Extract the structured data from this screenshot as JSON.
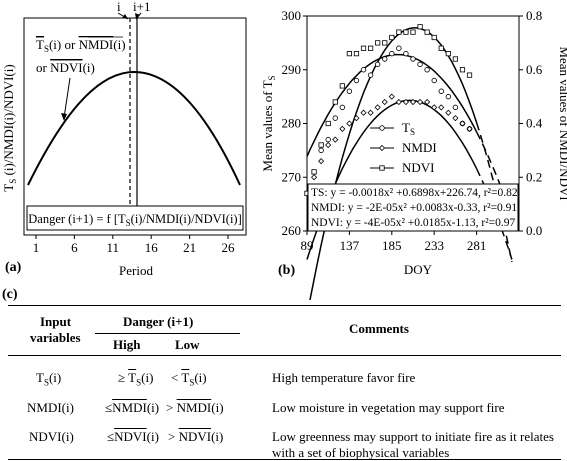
{
  "panel_a": {
    "label": "(a)",
    "top_marker_i": "i",
    "top_marker_i1": "i+1",
    "ylabel": "TS (i)/NMDI(i)/NDVI(i)",
    "legend_line1_prefix": "",
    "legend_ts": "T",
    "legend_ts_sub": "S",
    "legend_ts_suffix": "(i) or ",
    "legend_nmdi": "NMDI",
    "legend_nmdi_suffix": "(i)",
    "legend_line2_prefix": "or ",
    "legend_ndvi": "NDVI",
    "legend_ndvi_suffix": "(i)",
    "danger_text": "Danger (i+1) = f [TS(i)/NMDI(i)/NDVI(i)]",
    "x_ticks": [
      "1",
      "6",
      "11",
      "16",
      "21",
      "26"
    ],
    "xlabel": "Period"
  },
  "chart_data": {
    "type": "scatter",
    "label": "(b)",
    "xlabel": "DOY",
    "ylabel_left": "Mean values of TS",
    "ylabel_right": "Mean values of NMDI/NDVI",
    "x_ticks": [
      "89",
      "137",
      "185",
      "233",
      "281"
    ],
    "y_left_ticks": [
      "260",
      "270",
      "280",
      "290",
      "300"
    ],
    "y_right_ticks": [
      "0.0",
      "0.2",
      "0.4",
      "0.6",
      "0.8"
    ],
    "xlim": [
      89,
      329
    ],
    "ylim_left": [
      260,
      300
    ],
    "ylim_right": [
      0.0,
      0.8
    ],
    "legend": [
      {
        "name": "TS",
        "marker": "circle"
      },
      {
        "name": "NMDI",
        "marker": "diamond"
      },
      {
        "name": "NDVI",
        "marker": "square"
      }
    ],
    "equations": [
      "TS: y = -0.0018x² +0.6898x+226.74, r²=0.82",
      "NMDI: y = -2E-05x² +0.0083x-0.33, r²=0.91",
      "NDVI: y = -4E-05x² +0.0185x-1.13, r²=0.97"
    ],
    "series": [
      {
        "name": "TS",
        "axis": "left",
        "x": [
          105,
          113,
          121,
          129,
          137,
          145,
          153,
          161,
          169,
          177,
          185,
          193,
          201,
          209,
          217,
          225,
          233,
          241,
          249,
          257,
          265,
          273
        ],
        "y": [
          275,
          277,
          281,
          283,
          286,
          288,
          290,
          289,
          291,
          292,
          293,
          294,
          293,
          292,
          291,
          290,
          288,
          286,
          285,
          283,
          280,
          279
        ]
      },
      {
        "name": "NMDI",
        "axis": "left",
        "x": [
          97,
          105,
          113,
          121,
          129,
          137,
          145,
          153,
          161,
          169,
          177,
          185,
          193,
          201,
          209,
          217,
          225,
          233,
          241,
          249,
          257,
          265,
          273
        ],
        "y": [
          270,
          273,
          276,
          277,
          279,
          280,
          281,
          282,
          282,
          283,
          284,
          285,
          284,
          284,
          284,
          284,
          284,
          283,
          283,
          282,
          281,
          280,
          279
        ]
      },
      {
        "name": "NDVI",
        "axis": "left",
        "x": [
          89,
          97,
          105,
          113,
          121,
          129,
          137,
          145,
          153,
          161,
          169,
          177,
          185,
          193,
          201,
          209,
          217,
          225,
          233,
          241,
          249,
          257,
          265,
          273
        ],
        "y": [
          267,
          271,
          276,
          280,
          284,
          287,
          293,
          293,
          294,
          294,
          295,
          295,
          296,
          297,
          297,
          297,
          298,
          297,
          296,
          294,
          293,
          292,
          290,
          289
        ]
      }
    ]
  },
  "panel_c": {
    "label": "(c)",
    "col_input": "Input variables",
    "col_input_l1": "Input",
    "col_input_l2": "variables",
    "col_danger": "Danger (i+1)",
    "col_high": "High",
    "col_low": "Low",
    "col_comments": "Comments",
    "rows": [
      {
        "var": "TS(i)",
        "var_main": "T",
        "var_sub": "S",
        "var_tail": "(i)",
        "high_op": "≥ ",
        "high_main": "T",
        "high_sub": "S",
        "high_tail": "(i)",
        "low_op": "< ",
        "low_main": "T",
        "low_sub": "S",
        "low_tail": "(i)",
        "comment": "High temperature favor fire"
      },
      {
        "var": "NMDI(i)",
        "var_main": "NMDI",
        "var_sub": "",
        "var_tail": "(i)",
        "high_op": "≤",
        "high_main": "NMDI",
        "high_sub": "",
        "high_tail": "(i)",
        "low_op": "> ",
        "low_main": "NMDI",
        "low_sub": "",
        "low_tail": "(i)",
        "comment": "Low moisture in vegetation may support fire"
      },
      {
        "var": "NDVI(i)",
        "var_main": "NDVI",
        "var_sub": "",
        "var_tail": "(i)",
        "high_op": "≤",
        "high_main": "NDVI",
        "high_sub": "",
        "high_tail": "(i)",
        "low_op": "> ",
        "low_main": "NDVI",
        "low_sub": "",
        "low_tail": "(i)",
        "comment": "Low greenness may support to initiate fire as it relates",
        "comment2": "with a set of biophysical variables"
      }
    ]
  }
}
